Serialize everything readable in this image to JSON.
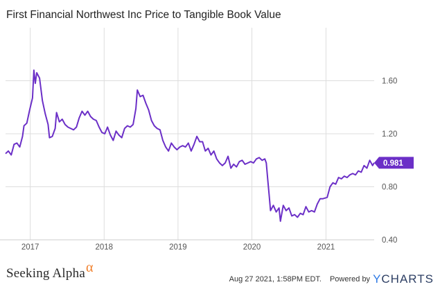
{
  "chart_data": {
    "type": "line",
    "title": "First Financial Northwest Inc Price to Tangible Book Value",
    "xlabel": "",
    "ylabel": "",
    "x_ticks": [
      "2017",
      "2018",
      "2019",
      "2020",
      "2021"
    ],
    "y_ticks": [
      "0.40",
      "0.80",
      "1.20",
      "1.60"
    ],
    "ylim": [
      0.4,
      2.0
    ],
    "xlim": [
      "2016-09-01",
      "2021-08-27"
    ],
    "grid": true,
    "series": [
      {
        "color": "#6b2fc7",
        "points": [
          [
            "2016-09-01",
            1.05
          ],
          [
            "2016-09-15",
            1.07
          ],
          [
            "2016-09-29",
            1.04
          ],
          [
            "2016-10-13",
            1.12
          ],
          [
            "2016-10-27",
            1.13
          ],
          [
            "2016-11-10",
            1.1
          ],
          [
            "2016-11-24",
            1.18
          ],
          [
            "2016-12-01",
            1.26
          ],
          [
            "2016-12-15",
            1.28
          ],
          [
            "2016-12-29",
            1.38
          ],
          [
            "2017-01-12",
            1.47
          ],
          [
            "2017-01-19",
            1.68
          ],
          [
            "2017-01-26",
            1.58
          ],
          [
            "2017-02-02",
            1.66
          ],
          [
            "2017-02-16",
            1.62
          ],
          [
            "2017-03-02",
            1.45
          ],
          [
            "2017-03-16",
            1.35
          ],
          [
            "2017-03-30",
            1.27
          ],
          [
            "2017-04-06",
            1.17
          ],
          [
            "2017-04-20",
            1.18
          ],
          [
            "2017-05-04",
            1.24
          ],
          [
            "2017-05-11",
            1.36
          ],
          [
            "2017-05-25",
            1.29
          ],
          [
            "2017-06-08",
            1.31
          ],
          [
            "2017-06-22",
            1.27
          ],
          [
            "2017-07-06",
            1.25
          ],
          [
            "2017-07-20",
            1.24
          ],
          [
            "2017-08-03",
            1.23
          ],
          [
            "2017-08-17",
            1.25
          ],
          [
            "2017-08-31",
            1.32
          ],
          [
            "2017-09-14",
            1.37
          ],
          [
            "2017-09-28",
            1.34
          ],
          [
            "2017-10-12",
            1.37
          ],
          [
            "2017-10-26",
            1.33
          ],
          [
            "2017-11-09",
            1.31
          ],
          [
            "2017-11-23",
            1.3
          ],
          [
            "2017-12-07",
            1.25
          ],
          [
            "2017-12-21",
            1.21
          ],
          [
            "2018-01-04",
            1.2
          ],
          [
            "2018-01-18",
            1.25
          ],
          [
            "2018-02-01",
            1.19
          ],
          [
            "2018-02-15",
            1.15
          ],
          [
            "2018-03-01",
            1.22
          ],
          [
            "2018-03-15",
            1.19
          ],
          [
            "2018-03-29",
            1.17
          ],
          [
            "2018-04-12",
            1.24
          ],
          [
            "2018-04-26",
            1.26
          ],
          [
            "2018-05-10",
            1.25
          ],
          [
            "2018-05-24",
            1.27
          ],
          [
            "2018-06-07",
            1.39
          ],
          [
            "2018-06-14",
            1.53
          ],
          [
            "2018-06-28",
            1.48
          ],
          [
            "2018-07-12",
            1.49
          ],
          [
            "2018-07-26",
            1.43
          ],
          [
            "2018-08-09",
            1.38
          ],
          [
            "2018-08-23",
            1.3
          ],
          [
            "2018-09-06",
            1.26
          ],
          [
            "2018-09-20",
            1.24
          ],
          [
            "2018-10-04",
            1.23
          ],
          [
            "2018-10-18",
            1.15
          ],
          [
            "2018-11-01",
            1.1
          ],
          [
            "2018-11-15",
            1.07
          ],
          [
            "2018-11-29",
            1.13
          ],
          [
            "2018-12-13",
            1.1
          ],
          [
            "2018-12-27",
            1.08
          ],
          [
            "2019-01-10",
            1.1
          ],
          [
            "2019-01-24",
            1.11
          ],
          [
            "2019-02-07",
            1.1
          ],
          [
            "2019-02-21",
            1.13
          ],
          [
            "2019-03-07",
            1.07
          ],
          [
            "2019-03-21",
            1.12
          ],
          [
            "2019-04-04",
            1.18
          ],
          [
            "2019-04-18",
            1.14
          ],
          [
            "2019-05-02",
            1.14
          ],
          [
            "2019-05-16",
            1.07
          ],
          [
            "2019-05-30",
            1.09
          ],
          [
            "2019-06-13",
            1.04
          ],
          [
            "2019-06-27",
            1.07
          ],
          [
            "2019-07-11",
            1.01
          ],
          [
            "2019-07-25",
            0.98
          ],
          [
            "2019-08-08",
            0.96
          ],
          [
            "2019-08-22",
            0.98
          ],
          [
            "2019-09-05",
            1.03
          ],
          [
            "2019-09-19",
            0.94
          ],
          [
            "2019-10-03",
            0.97
          ],
          [
            "2019-10-17",
            0.95
          ],
          [
            "2019-10-31",
            0.99
          ],
          [
            "2019-11-14",
            1.0
          ],
          [
            "2019-11-28",
            0.97
          ],
          [
            "2019-12-12",
            0.98
          ],
          [
            "2019-12-26",
            0.99
          ],
          [
            "2020-01-09",
            0.98
          ],
          [
            "2020-01-23",
            1.01
          ],
          [
            "2020-02-06",
            1.02
          ],
          [
            "2020-02-20",
            1.0
          ],
          [
            "2020-03-05",
            1.01
          ],
          [
            "2020-03-12",
            0.98
          ],
          [
            "2020-03-19",
            0.86
          ],
          [
            "2020-03-26",
            0.74
          ],
          [
            "2020-04-02",
            0.62
          ],
          [
            "2020-04-16",
            0.66
          ],
          [
            "2020-04-30",
            0.61
          ],
          [
            "2020-05-14",
            0.64
          ],
          [
            "2020-05-21",
            0.54
          ],
          [
            "2020-06-04",
            0.66
          ],
          [
            "2020-06-18",
            0.62
          ],
          [
            "2020-07-02",
            0.64
          ],
          [
            "2020-07-16",
            0.58
          ],
          [
            "2020-07-30",
            0.59
          ],
          [
            "2020-08-13",
            0.57
          ],
          [
            "2020-08-27",
            0.6
          ],
          [
            "2020-09-10",
            0.59
          ],
          [
            "2020-09-24",
            0.65
          ],
          [
            "2020-10-08",
            0.61
          ],
          [
            "2020-10-22",
            0.62
          ],
          [
            "2020-11-05",
            0.61
          ],
          [
            "2020-11-19",
            0.67
          ],
          [
            "2020-12-03",
            0.71
          ],
          [
            "2020-12-17",
            0.71
          ],
          [
            "2021-01-07",
            0.72
          ],
          [
            "2021-01-21",
            0.8
          ],
          [
            "2021-02-04",
            0.83
          ],
          [
            "2021-02-18",
            0.82
          ],
          [
            "2021-03-04",
            0.87
          ],
          [
            "2021-03-18",
            0.86
          ],
          [
            "2021-04-01",
            0.88
          ],
          [
            "2021-04-15",
            0.87
          ],
          [
            "2021-04-29",
            0.89
          ],
          [
            "2021-05-13",
            0.9
          ],
          [
            "2021-05-27",
            0.89
          ],
          [
            "2021-06-10",
            0.92
          ],
          [
            "2021-06-24",
            0.91
          ],
          [
            "2021-07-08",
            0.96
          ],
          [
            "2021-07-22",
            0.94
          ],
          [
            "2021-08-05",
            1.0
          ],
          [
            "2021-08-19",
            0.96
          ],
          [
            "2021-08-27",
            0.981
          ]
        ]
      }
    ],
    "last_value_label": "0.981"
  },
  "footer": {
    "brand": "Seeking Alpha",
    "brand_symbol": "α",
    "timestamp": "Aug 27 2021, 1:58PM EDT.",
    "powered_by": "Powered by",
    "provider": "YCHARTS",
    "provider_y": "Y",
    "provider_rest": "CHARTS"
  },
  "colors": {
    "line": "#6b2fc7",
    "grid": "#dddddd",
    "brand_alpha": "#f07f2a",
    "ycharts_y": "#2f7ae5",
    "ycharts_text": "#2c3e63"
  }
}
